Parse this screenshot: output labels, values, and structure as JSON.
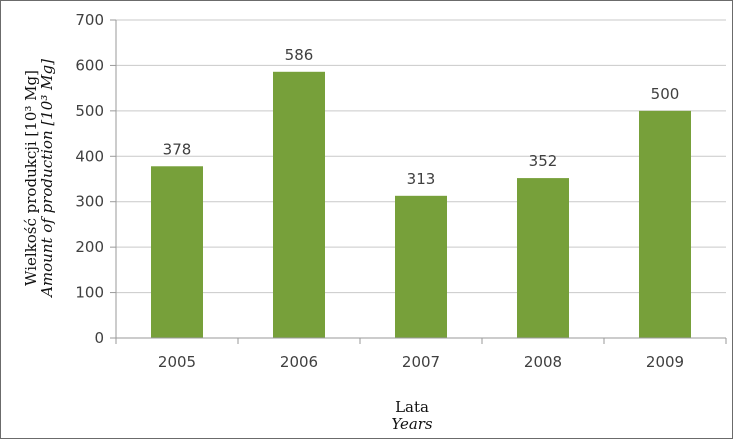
{
  "chart_data": {
    "type": "bar",
    "categories": [
      "2005",
      "2006",
      "2007",
      "2008",
      "2009"
    ],
    "values": [
      378,
      586,
      313,
      352,
      500
    ],
    "ylim": [
      0,
      700
    ],
    "yticks": [
      0,
      100,
      200,
      300,
      400,
      500,
      600,
      700
    ],
    "xlabel": "Lata",
    "xlabel_en": "Years",
    "ylabel": "Wielkość produkcji [10³ Mg]",
    "ylabel_en": "Amount of production [10³ Mg]",
    "grid": true,
    "legend": "none",
    "colors": {
      "bar": "#77a03a",
      "grid": "#c9c9c9",
      "axis": "#9a9a9a"
    }
  }
}
